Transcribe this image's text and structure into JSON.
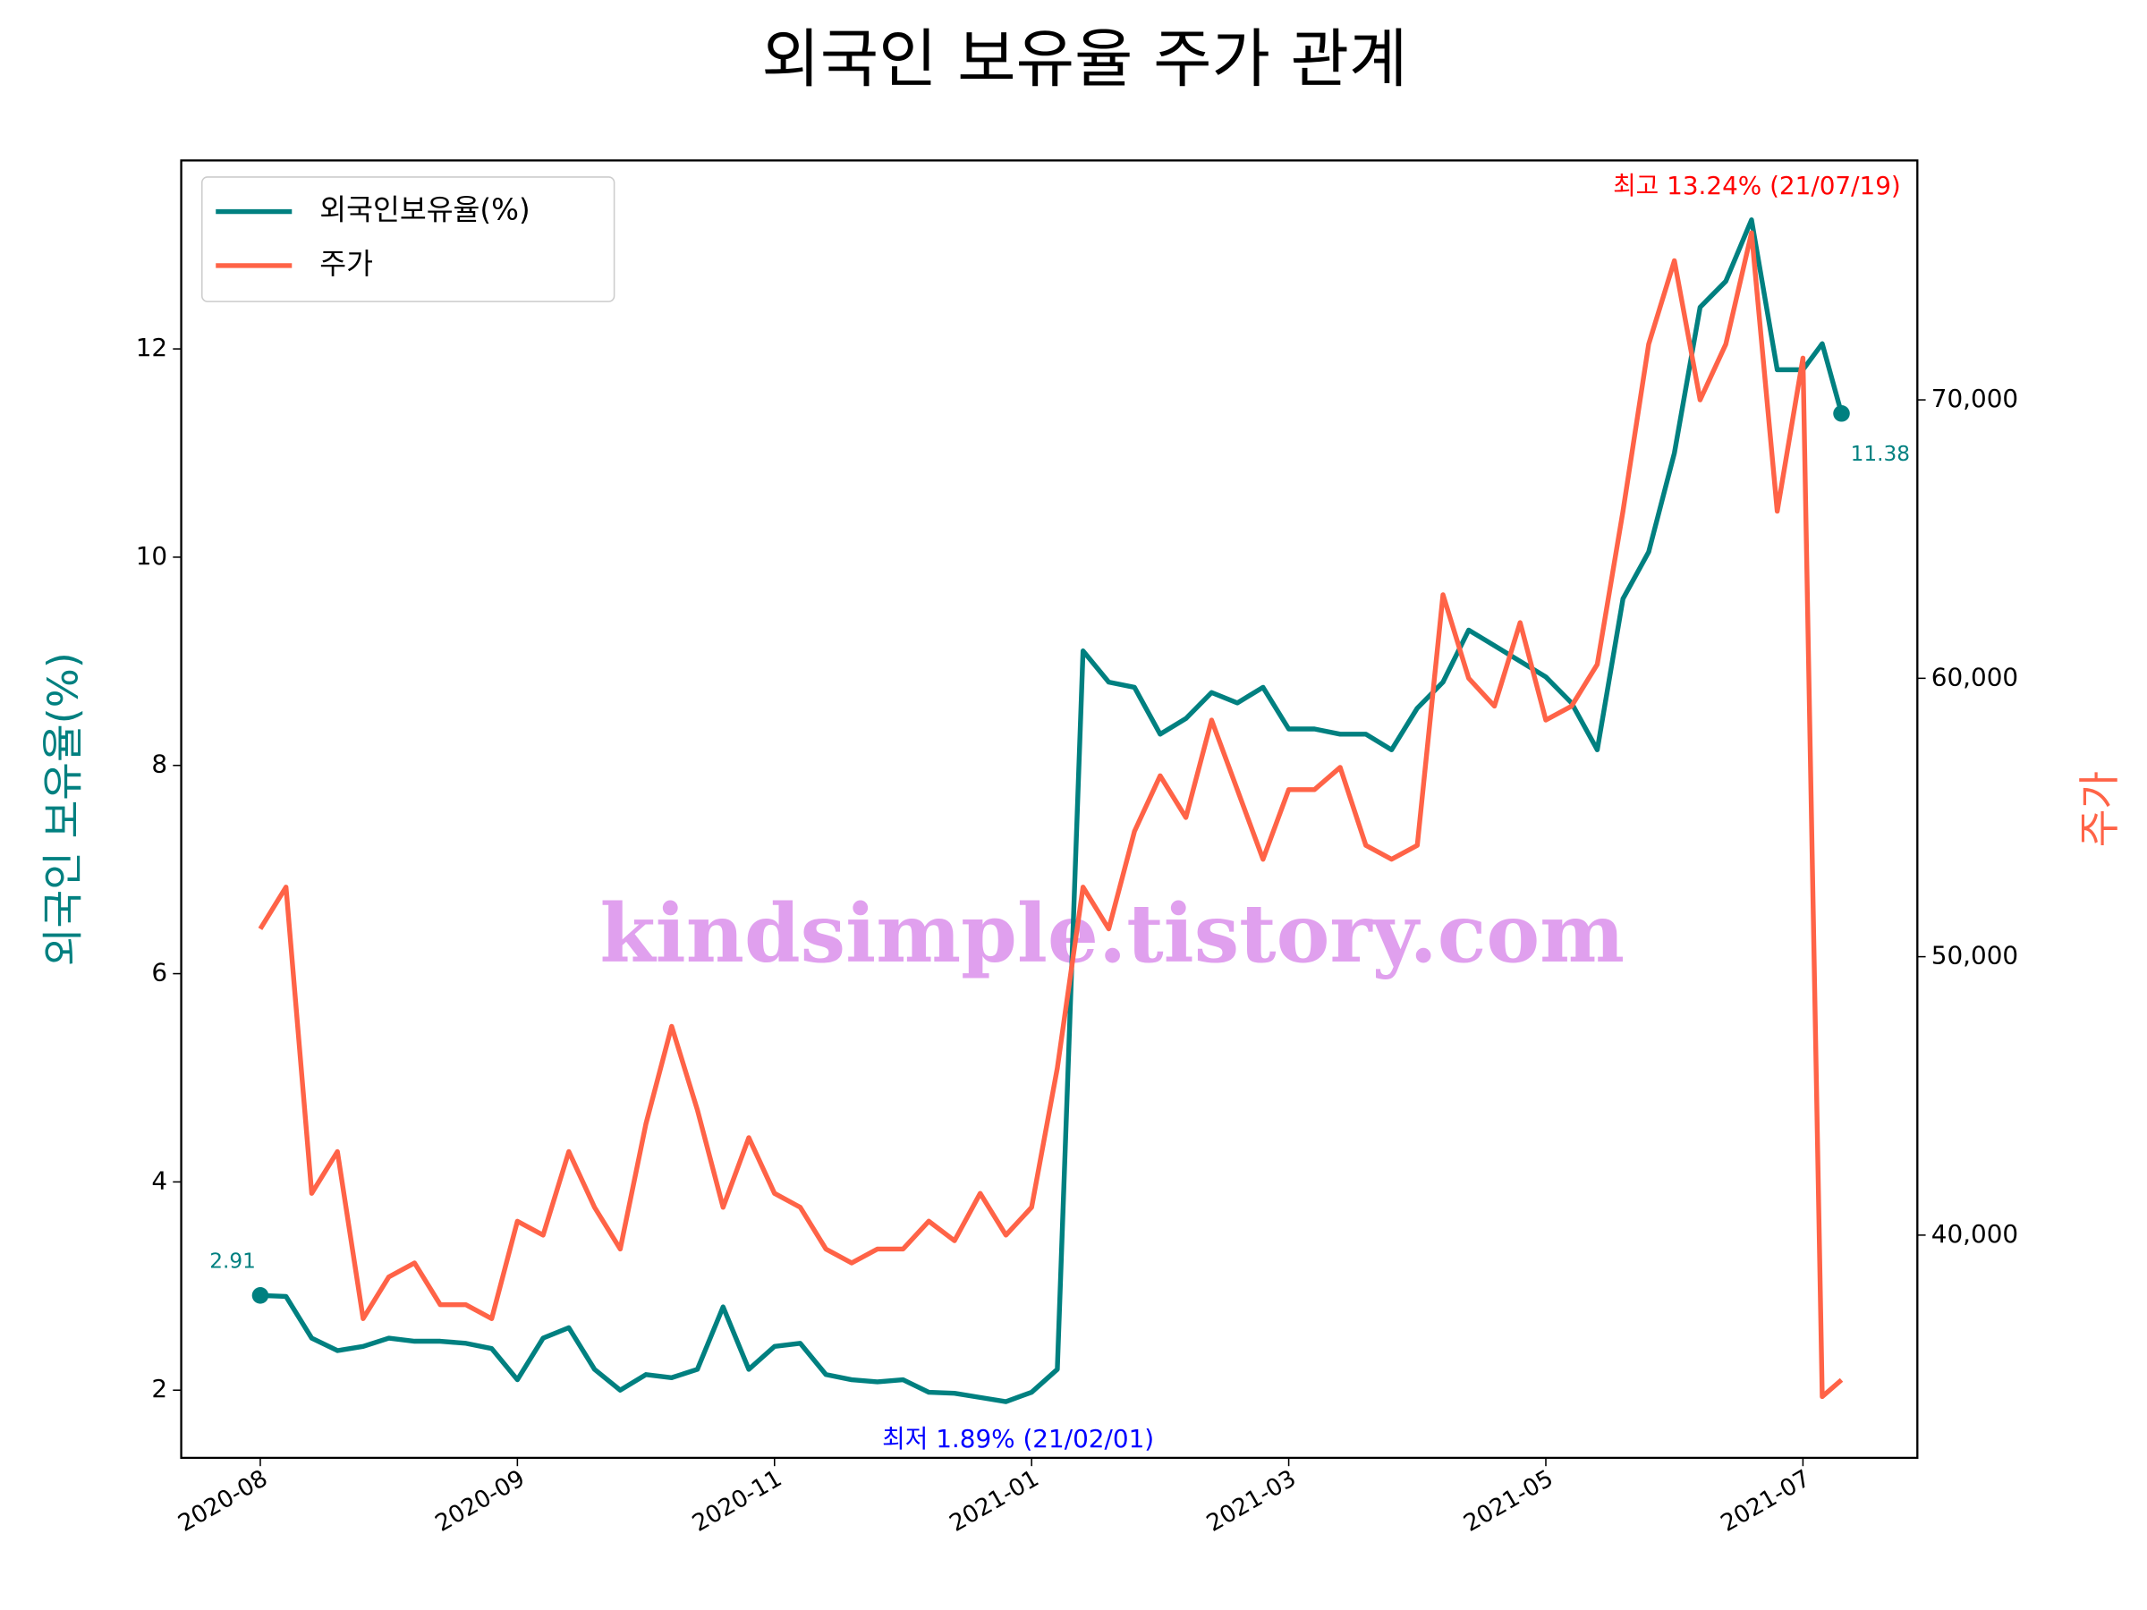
{
  "chart_data": {
    "type": "line",
    "title": "외국인 보유율 주가 관계",
    "ylabel": "외국인 보유율(%)",
    "y2label": "주가",
    "watermark": "kindsimple.tistory.com",
    "annotations": [
      {
        "text": "최고 13.24% (21/07/19)",
        "color": "#ff0000"
      },
      {
        "text": "최저 1.89% (21/02/01)",
        "color": "#0000ff"
      }
    ],
    "legend": "upper left",
    "x": [
      0,
      4,
      8,
      12,
      16,
      20,
      24,
      28,
      32,
      36,
      40,
      44,
      48,
      52,
      56,
      60,
      64,
      68,
      72,
      76,
      80,
      84,
      88,
      92,
      96,
      100,
      104,
      108,
      112,
      116,
      120,
      124,
      128,
      132,
      136,
      140,
      144,
      148,
      152,
      156,
      160,
      164,
      168,
      172,
      176,
      180,
      184,
      188,
      192,
      196,
      200,
      204,
      208,
      212,
      216,
      220,
      224,
      228,
      232,
      236,
      240,
      243,
      246
    ],
    "xlim": [
      -12.3,
      257.8
    ],
    "xticks": [
      {
        "value": 0,
        "label": "2020-08"
      },
      {
        "value": 40,
        "label": "2020-09"
      },
      {
        "value": 80,
        "label": "2020-11"
      },
      {
        "value": 120,
        "label": "2021-01"
      },
      {
        "value": 160,
        "label": "2021-03"
      },
      {
        "value": 200,
        "label": "2021-05"
      },
      {
        "value": 240,
        "label": "2021-07"
      }
    ],
    "ylim": [
      1.35,
      13.81
    ],
    "yticks": [
      2,
      4,
      6,
      8,
      10,
      12
    ],
    "y2lim": [
      32000,
      78600
    ],
    "y2ticks": [
      {
        "value": 40000,
        "label": "40,000"
      },
      {
        "value": 50000,
        "label": "50,000"
      },
      {
        "value": 60000,
        "label": "60,000"
      },
      {
        "value": 70000,
        "label": "70,000"
      }
    ],
    "series": [
      {
        "name": "외국인보유율(%)",
        "color": "#008080",
        "values": [
          2.91,
          2.9,
          2.5,
          2.38,
          2.42,
          2.5,
          2.47,
          2.47,
          2.45,
          2.4,
          2.1,
          2.5,
          2.6,
          2.2,
          2.0,
          2.15,
          2.12,
          2.2,
          2.8,
          2.2,
          2.42,
          2.45,
          2.15,
          2.1,
          2.08,
          2.1,
          1.98,
          1.97,
          1.93,
          1.89,
          1.98,
          2.2,
          9.1,
          8.8,
          8.75,
          8.3,
          8.45,
          8.7,
          8.6,
          8.75,
          8.35,
          8.35,
          8.3,
          8.3,
          8.15,
          8.55,
          8.8,
          9.3,
          9.15,
          9.0,
          8.85,
          8.6,
          8.15,
          9.6,
          10.05,
          11.0,
          12.4,
          12.65,
          13.24,
          11.8,
          11.8,
          12.05,
          11.38
        ]
      },
      {
        "name": "주가",
        "color": "#ff6347",
        "axis": "y2",
        "values": [
          51000,
          52500,
          41500,
          43000,
          37000,
          38500,
          39000,
          37500,
          37500,
          37000,
          40500,
          40000,
          43000,
          41000,
          39500,
          44000,
          47500,
          44500,
          41000,
          43500,
          41500,
          41000,
          39500,
          39000,
          39500,
          39500,
          40500,
          39800,
          41500,
          40000,
          41000,
          46000,
          52500,
          51000,
          54500,
          56500,
          55000,
          58500,
          56000,
          53500,
          56000,
          56000,
          56800,
          54000,
          53500,
          54000,
          63000,
          60000,
          59000,
          62000,
          58500,
          59000,
          60500,
          66000,
          72000,
          75000,
          70000,
          72000,
          76000,
          66000,
          71500,
          34200,
          34800
        ]
      }
    ]
  }
}
